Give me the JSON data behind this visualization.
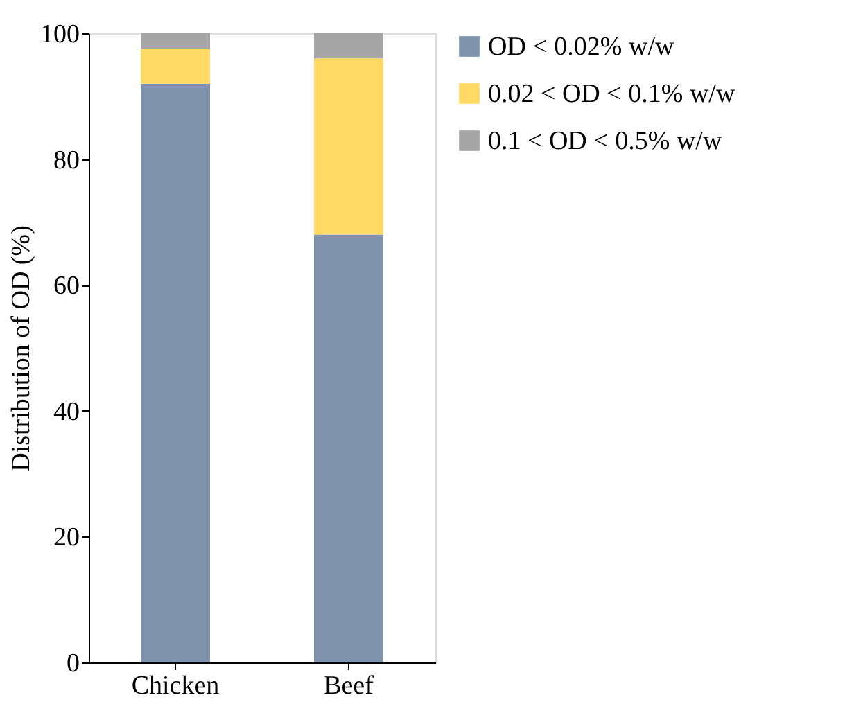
{
  "chart_data": {
    "type": "bar",
    "stacked": true,
    "ylabel": "Distribution of OD (%)",
    "categories": [
      "Chicken",
      "Beef"
    ],
    "series": [
      {
        "name": "OD < 0.02% w/w",
        "color": "#7f93ad",
        "values": [
          92,
          68
        ]
      },
      {
        "name": "0.02 < OD < 0.1% w/w",
        "color": "#ffd966",
        "values": [
          5.5,
          28
        ]
      },
      {
        "name": "0.1 < OD < 0.5% w/w",
        "color": "#a6a6a6",
        "values": [
          2.5,
          4
        ]
      }
    ],
    "ylim": [
      0,
      100
    ],
    "yticks": [
      0,
      20,
      40,
      60,
      80,
      100
    ],
    "grid": false,
    "legend": "top right"
  }
}
